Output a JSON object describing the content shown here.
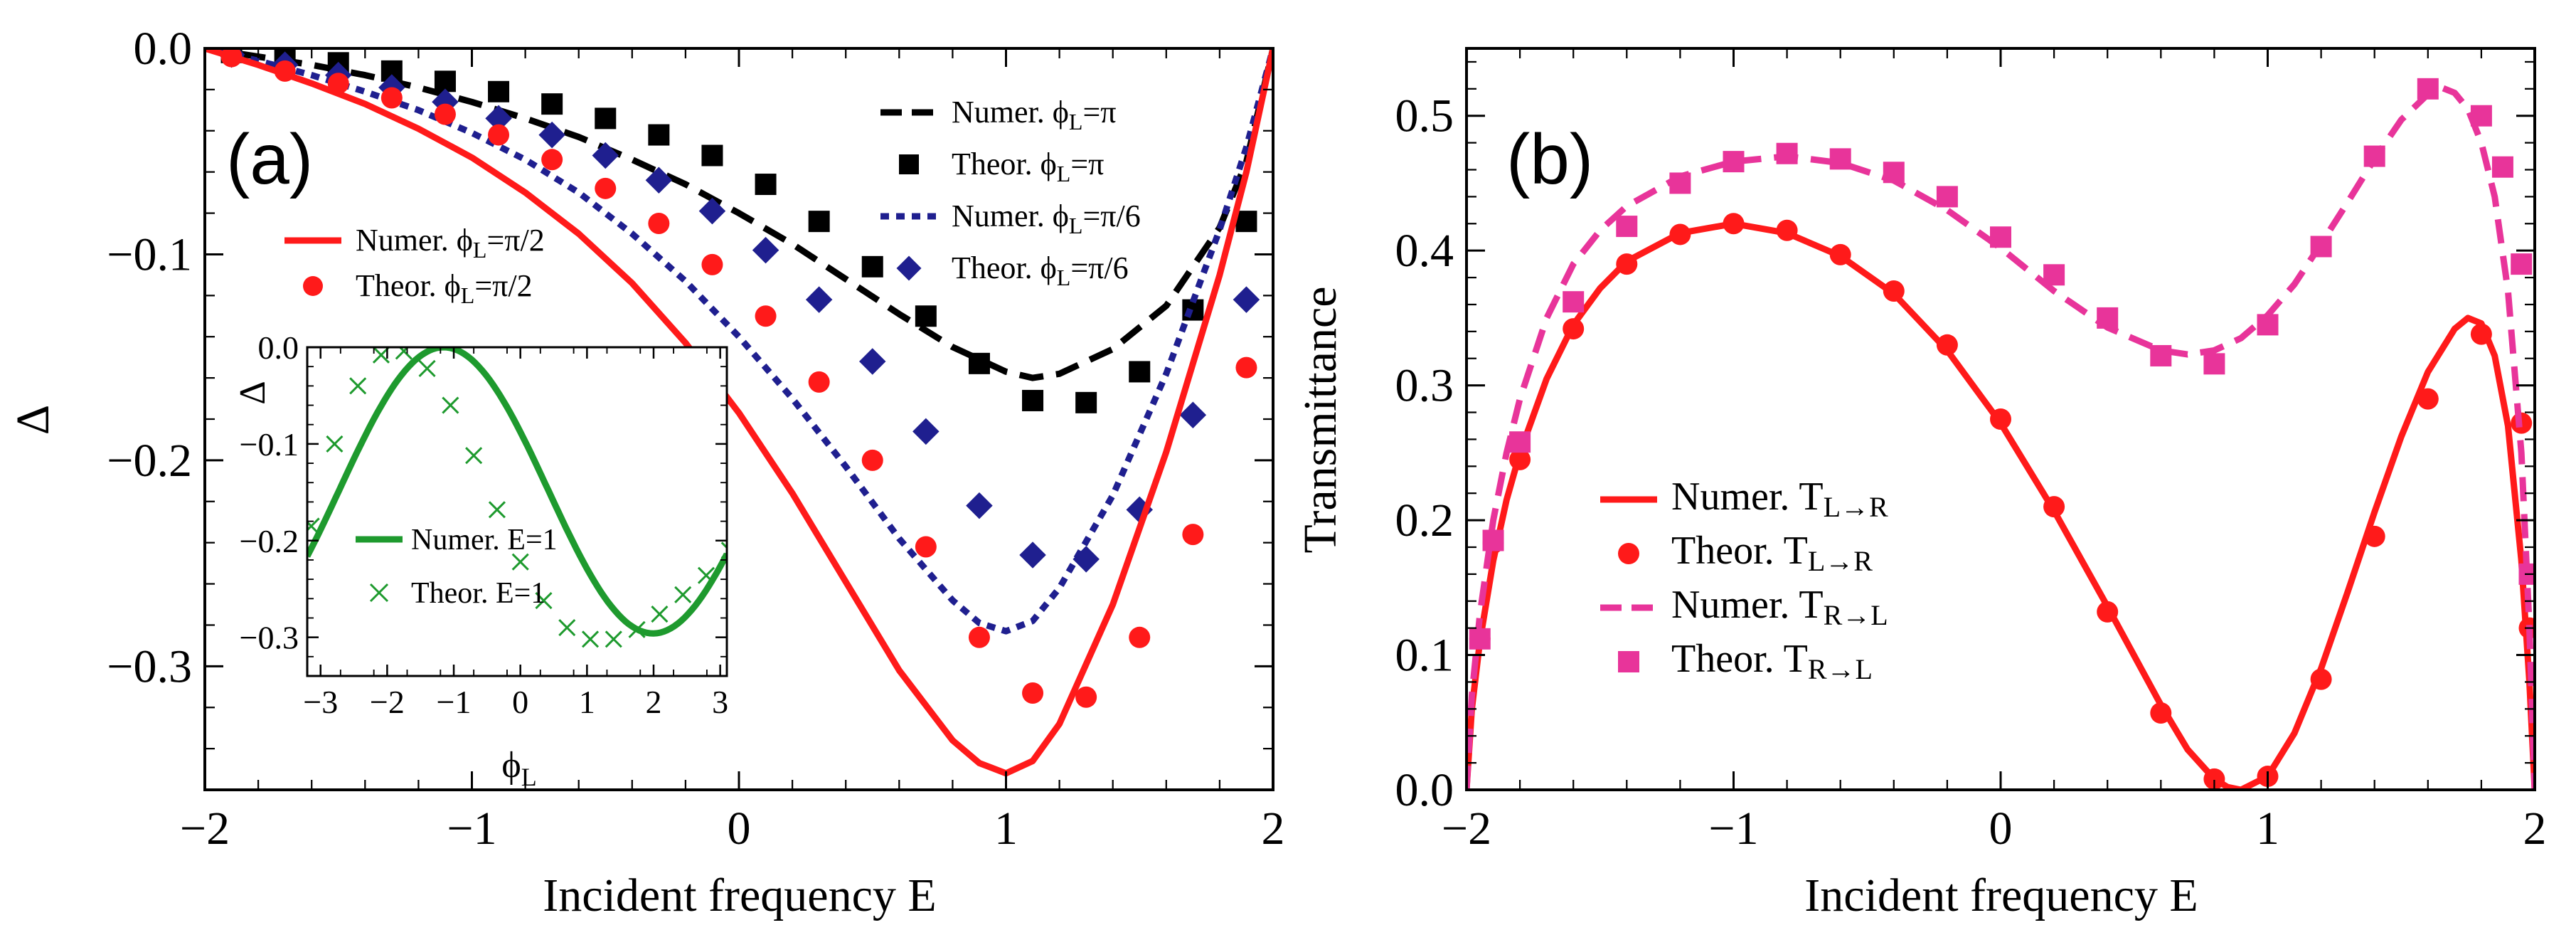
{
  "colors": {
    "red": "#ff1a1a",
    "black": "#000000",
    "navy": "#1f1f8f",
    "green": "#1e9a2e",
    "pink": "#e8349a"
  },
  "chart_data": [
    {
      "panel": "(a)",
      "type": "line",
      "xlabel": "Incident frequency E",
      "ylabel": "Δ",
      "xlim": [
        -2,
        2
      ],
      "ylim": [
        -0.36,
        0.0
      ],
      "xticks": [
        "−2",
        "−1",
        "0",
        "1",
        "2"
      ],
      "yticks": [
        "0.0",
        "−0.1",
        "−0.2",
        "−0.3"
      ],
      "ytick_values": [
        0.0,
        -0.1,
        -0.2,
        -0.3
      ],
      "xtick_values": [
        -2,
        -1,
        0,
        1,
        2
      ],
      "series": [
        {
          "name": "Numer. ϕL=π",
          "legend_main": "Numer. ϕ",
          "legend_sub": "L",
          "legend_tail": "=π",
          "kind": "line",
          "dash": "dash",
          "color": "black",
          "x": [
            -2.0,
            -1.8,
            -1.6,
            -1.4,
            -1.2,
            -1.0,
            -0.8,
            -0.6,
            -0.4,
            -0.2,
            0.0,
            0.2,
            0.4,
            0.6,
            0.8,
            1.0,
            1.1,
            1.2,
            1.4,
            1.6,
            1.8,
            1.9,
            2.0
          ],
          "y": [
            0.0,
            -0.004,
            -0.008,
            -0.013,
            -0.019,
            -0.026,
            -0.034,
            -0.043,
            -0.054,
            -0.066,
            -0.08,
            -0.095,
            -0.112,
            -0.129,
            -0.145,
            -0.157,
            -0.16,
            -0.158,
            -0.146,
            -0.125,
            -0.087,
            -0.055,
            0.0
          ]
        },
        {
          "name": "Theor. ϕL=π",
          "legend_main": "Theor. ϕ",
          "legend_sub": "L",
          "legend_tail": "=π",
          "kind": "marker",
          "marker": "square",
          "color": "black",
          "x": [
            -1.9,
            -1.7,
            -1.5,
            -1.3,
            -1.1,
            -0.9,
            -0.7,
            -0.5,
            -0.3,
            -0.1,
            0.1,
            0.3,
            0.5,
            0.7,
            0.9,
            1.1,
            1.3,
            1.5,
            1.7,
            1.9
          ],
          "y": [
            -0.002,
            -0.004,
            -0.007,
            -0.011,
            -0.016,
            -0.021,
            -0.027,
            -0.034,
            -0.042,
            -0.052,
            -0.066,
            -0.084,
            -0.106,
            -0.13,
            -0.153,
            -0.171,
            -0.172,
            -0.157,
            -0.127,
            -0.084
          ]
        },
        {
          "name": "Numer. ϕL=π/6",
          "legend_main": "Numer. ϕ",
          "legend_sub": "L",
          "legend_tail": "=π/6",
          "kind": "line",
          "dash": "dot",
          "color": "navy",
          "x": [
            -2.0,
            -1.8,
            -1.6,
            -1.4,
            -1.2,
            -1.0,
            -0.8,
            -0.6,
            -0.4,
            -0.2,
            0.0,
            0.2,
            0.4,
            0.6,
            0.8,
            0.9,
            1.0,
            1.1,
            1.2,
            1.4,
            1.6,
            1.8,
            1.9,
            2.0
          ],
          "y": [
            0.0,
            -0.006,
            -0.013,
            -0.021,
            -0.03,
            -0.041,
            -0.054,
            -0.07,
            -0.09,
            -0.113,
            -0.14,
            -0.17,
            -0.203,
            -0.238,
            -0.268,
            -0.279,
            -0.283,
            -0.278,
            -0.262,
            -0.217,
            -0.158,
            -0.088,
            -0.048,
            0.0
          ]
        },
        {
          "name": "Theor. ϕL=π/6",
          "legend_main": "Theor. ϕ",
          "legend_sub": "L",
          "legend_tail": "=π/6",
          "kind": "marker",
          "marker": "diamond",
          "color": "navy",
          "x": [
            -1.9,
            -1.7,
            -1.5,
            -1.3,
            -1.1,
            -0.9,
            -0.7,
            -0.5,
            -0.3,
            -0.1,
            0.1,
            0.3,
            0.5,
            0.7,
            0.9,
            1.1,
            1.3,
            1.5,
            1.7,
            1.9
          ],
          "y": [
            -0.003,
            -0.008,
            -0.013,
            -0.019,
            -0.026,
            -0.034,
            -0.042,
            -0.052,
            -0.064,
            -0.079,
            -0.098,
            -0.122,
            -0.152,
            -0.186,
            -0.222,
            -0.246,
            -0.248,
            -0.224,
            -0.178,
            -0.122
          ]
        },
        {
          "name": "Numer. ϕL=π/2",
          "legend_main": "Numer. ϕ",
          "legend_sub": "L",
          "legend_tail": "=π/2",
          "kind": "line",
          "dash": "solid",
          "color": "red",
          "x": [
            -2.0,
            -1.8,
            -1.6,
            -1.4,
            -1.2,
            -1.0,
            -0.8,
            -0.6,
            -0.4,
            -0.2,
            0.0,
            0.2,
            0.4,
            0.6,
            0.8,
            0.9,
            1.0,
            1.1,
            1.2,
            1.4,
            1.6,
            1.8,
            1.9,
            2.0
          ],
          "y": [
            0.0,
            -0.008,
            -0.017,
            -0.027,
            -0.039,
            -0.053,
            -0.07,
            -0.09,
            -0.114,
            -0.143,
            -0.177,
            -0.216,
            -0.259,
            -0.302,
            -0.336,
            -0.347,
            -0.352,
            -0.346,
            -0.328,
            -0.27,
            -0.196,
            -0.11,
            -0.06,
            0.0
          ]
        },
        {
          "name": "Theor. ϕL=π/2",
          "legend_main": "Theor. ϕ",
          "legend_sub": "L",
          "legend_tail": "=π/2",
          "kind": "marker",
          "marker": "circle",
          "color": "red",
          "x": [
            -1.9,
            -1.7,
            -1.5,
            -1.3,
            -1.1,
            -0.9,
            -0.7,
            -0.5,
            -0.3,
            -0.1,
            0.1,
            0.3,
            0.5,
            0.7,
            0.9,
            1.1,
            1.3,
            1.5,
            1.7,
            1.9
          ],
          "y": [
            -0.004,
            -0.011,
            -0.017,
            -0.024,
            -0.032,
            -0.042,
            -0.054,
            -0.068,
            -0.085,
            -0.105,
            -0.13,
            -0.162,
            -0.2,
            -0.242,
            -0.286,
            -0.313,
            -0.315,
            -0.286,
            -0.236,
            -0.155
          ]
        }
      ],
      "legend_order": [
        0,
        1,
        2,
        3
      ],
      "legend_left_order": [
        4,
        5
      ]
    },
    {
      "panel": "inset",
      "type": "line",
      "xlabel_main": "ϕ",
      "xlabel_sub": "L",
      "ylabel": "Δ",
      "xlim": [
        -3.2,
        3.1
      ],
      "ylim": [
        -0.34,
        0.0
      ],
      "xticks": [
        "−3",
        "−2",
        "−1",
        "0",
        "1",
        "2",
        "3"
      ],
      "xtick_values": [
        -3,
        -2,
        -1,
        0,
        1,
        2,
        3
      ],
      "yticks": [
        "0.0",
        "−0.1",
        "−0.2",
        "−0.3"
      ],
      "ytick_values": [
        0.0,
        -0.1,
        -0.2,
        -0.3
      ],
      "series": [
        {
          "name": "Numer. E=1",
          "kind": "line",
          "color": "green",
          "amplitude": 0.148,
          "offset": -0.148,
          "phase": 1.57
        },
        {
          "name": "Theor. E=1",
          "kind": "marker",
          "marker": "cross",
          "color": "green",
          "x": [
            -3.14,
            -2.79,
            -2.44,
            -2.09,
            -1.75,
            -1.4,
            -1.05,
            -0.7,
            -0.35,
            0.0,
            0.35,
            0.7,
            1.05,
            1.4,
            1.75,
            2.09,
            2.44,
            2.79,
            3.14
          ],
          "y": [
            -0.185,
            -0.1,
            -0.04,
            -0.008,
            -0.004,
            -0.022,
            -0.06,
            -0.112,
            -0.168,
            -0.222,
            -0.262,
            -0.29,
            -0.302,
            -0.302,
            -0.292,
            -0.276,
            -0.256,
            -0.236,
            -0.21
          ]
        }
      ]
    },
    {
      "panel": "(b)",
      "type": "line",
      "xlabel": "Incident frequency E",
      "ylabel": "Transmittance",
      "xlim": [
        -2,
        2
      ],
      "ylim": [
        0.0,
        0.55
      ],
      "xticks": [
        "−2",
        "−1",
        "0",
        "1",
        "2"
      ],
      "xtick_values": [
        -2,
        -1,
        0,
        1,
        2
      ],
      "yticks": [
        "0.0",
        "0.1",
        "0.2",
        "0.3",
        "0.4",
        "0.5"
      ],
      "ytick_values": [
        0.0,
        0.1,
        0.2,
        0.3,
        0.4,
        0.5
      ],
      "series": [
        {
          "name": "Numer. TL→R",
          "legend_main": "Numer. T",
          "legend_sub": "L→R",
          "kind": "line",
          "dash": "solid",
          "color": "red",
          "x": [
            -2.0,
            -1.98,
            -1.95,
            -1.9,
            -1.85,
            -1.8,
            -1.7,
            -1.6,
            -1.5,
            -1.4,
            -1.2,
            -1.0,
            -0.8,
            -0.6,
            -0.4,
            -0.2,
            0.0,
            0.2,
            0.4,
            0.6,
            0.7,
            0.8,
            0.85,
            0.9,
            1.0,
            1.1,
            1.2,
            1.3,
            1.4,
            1.5,
            1.6,
            1.7,
            1.75,
            1.8,
            1.85,
            1.9,
            1.95,
            1.98,
            2.0
          ],
          "y": [
            0.0,
            0.06,
            0.11,
            0.17,
            0.215,
            0.25,
            0.305,
            0.345,
            0.372,
            0.392,
            0.413,
            0.42,
            0.413,
            0.396,
            0.368,
            0.326,
            0.272,
            0.207,
            0.136,
            0.063,
            0.03,
            0.008,
            0.002,
            0.0,
            0.01,
            0.042,
            0.09,
            0.147,
            0.206,
            0.262,
            0.31,
            0.342,
            0.35,
            0.346,
            0.322,
            0.27,
            0.17,
            0.08,
            0.0
          ]
        },
        {
          "name": "Theor. TL→R",
          "legend_main": "Theor. T",
          "legend_sub": "L→R",
          "kind": "marker",
          "marker": "circle",
          "color": "red",
          "x": [
            -1.95,
            -1.9,
            -1.8,
            -1.6,
            -1.4,
            -1.2,
            -1.0,
            -0.8,
            -0.6,
            -0.4,
            -0.2,
            0.0,
            0.2,
            0.4,
            0.6,
            0.8,
            1.0,
            1.2,
            1.4,
            1.6,
            1.8,
            1.95,
            1.98
          ],
          "y": [
            0.112,
            0.183,
            0.245,
            0.342,
            0.39,
            0.412,
            0.42,
            0.415,
            0.397,
            0.37,
            0.33,
            0.275,
            0.21,
            0.132,
            0.057,
            0.008,
            0.01,
            0.082,
            0.188,
            0.29,
            0.338,
            0.272,
            0.12
          ]
        },
        {
          "name": "Numer. TR→L",
          "legend_main": "Numer. T",
          "legend_sub": "R→L",
          "kind": "line",
          "dash": "dash",
          "color": "pink",
          "x": [
            -2.0,
            -1.98,
            -1.95,
            -1.9,
            -1.85,
            -1.8,
            -1.7,
            -1.6,
            -1.5,
            -1.4,
            -1.2,
            -1.0,
            -0.8,
            -0.6,
            -0.4,
            -0.2,
            0.0,
            0.2,
            0.4,
            0.6,
            0.7,
            0.8,
            0.9,
            1.0,
            1.1,
            1.2,
            1.3,
            1.4,
            1.5,
            1.6,
            1.65,
            1.7,
            1.75,
            1.8,
            1.85,
            1.9,
            1.95,
            1.98,
            2.0
          ],
          "y": [
            0.0,
            0.07,
            0.13,
            0.2,
            0.25,
            0.29,
            0.35,
            0.39,
            0.415,
            0.433,
            0.455,
            0.466,
            0.47,
            0.465,
            0.452,
            0.43,
            0.402,
            0.37,
            0.343,
            0.326,
            0.323,
            0.326,
            0.335,
            0.352,
            0.375,
            0.405,
            0.436,
            0.468,
            0.497,
            0.516,
            0.521,
            0.517,
            0.505,
            0.48,
            0.44,
            0.37,
            0.25,
            0.12,
            0.0
          ]
        },
        {
          "name": "Theor. TR→L",
          "legend_main": "Theor. T",
          "legend_sub": "R→L",
          "kind": "marker",
          "marker": "square",
          "color": "pink",
          "x": [
            -1.95,
            -1.9,
            -1.8,
            -1.6,
            -1.4,
            -1.2,
            -1.0,
            -0.8,
            -0.6,
            -0.4,
            -0.2,
            0.0,
            0.2,
            0.4,
            0.6,
            0.8,
            1.0,
            1.2,
            1.4,
            1.6,
            1.8,
            1.88,
            1.95,
            1.98
          ],
          "y": [
            0.112,
            0.185,
            0.258,
            0.362,
            0.418,
            0.45,
            0.466,
            0.472,
            0.468,
            0.458,
            0.44,
            0.41,
            0.382,
            0.35,
            0.322,
            0.316,
            0.345,
            0.403,
            0.47,
            0.52,
            0.5,
            0.462,
            0.39,
            0.16
          ]
        }
      ]
    }
  ],
  "labels": {
    "panel_a": "(a)",
    "panel_b": "(b)",
    "xlabel_a": "Incident frequency E",
    "xlabel_b": "Incident frequency E",
    "ylabel_a": "Δ",
    "ylabel_b": "Transmittance",
    "inset_ylabel": "Δ",
    "inset_xlabel_main": "ϕ",
    "inset_xlabel_sub": "L",
    "inset_legend_line": "Numer. E=1",
    "inset_legend_marker": "Theor. E=1"
  }
}
